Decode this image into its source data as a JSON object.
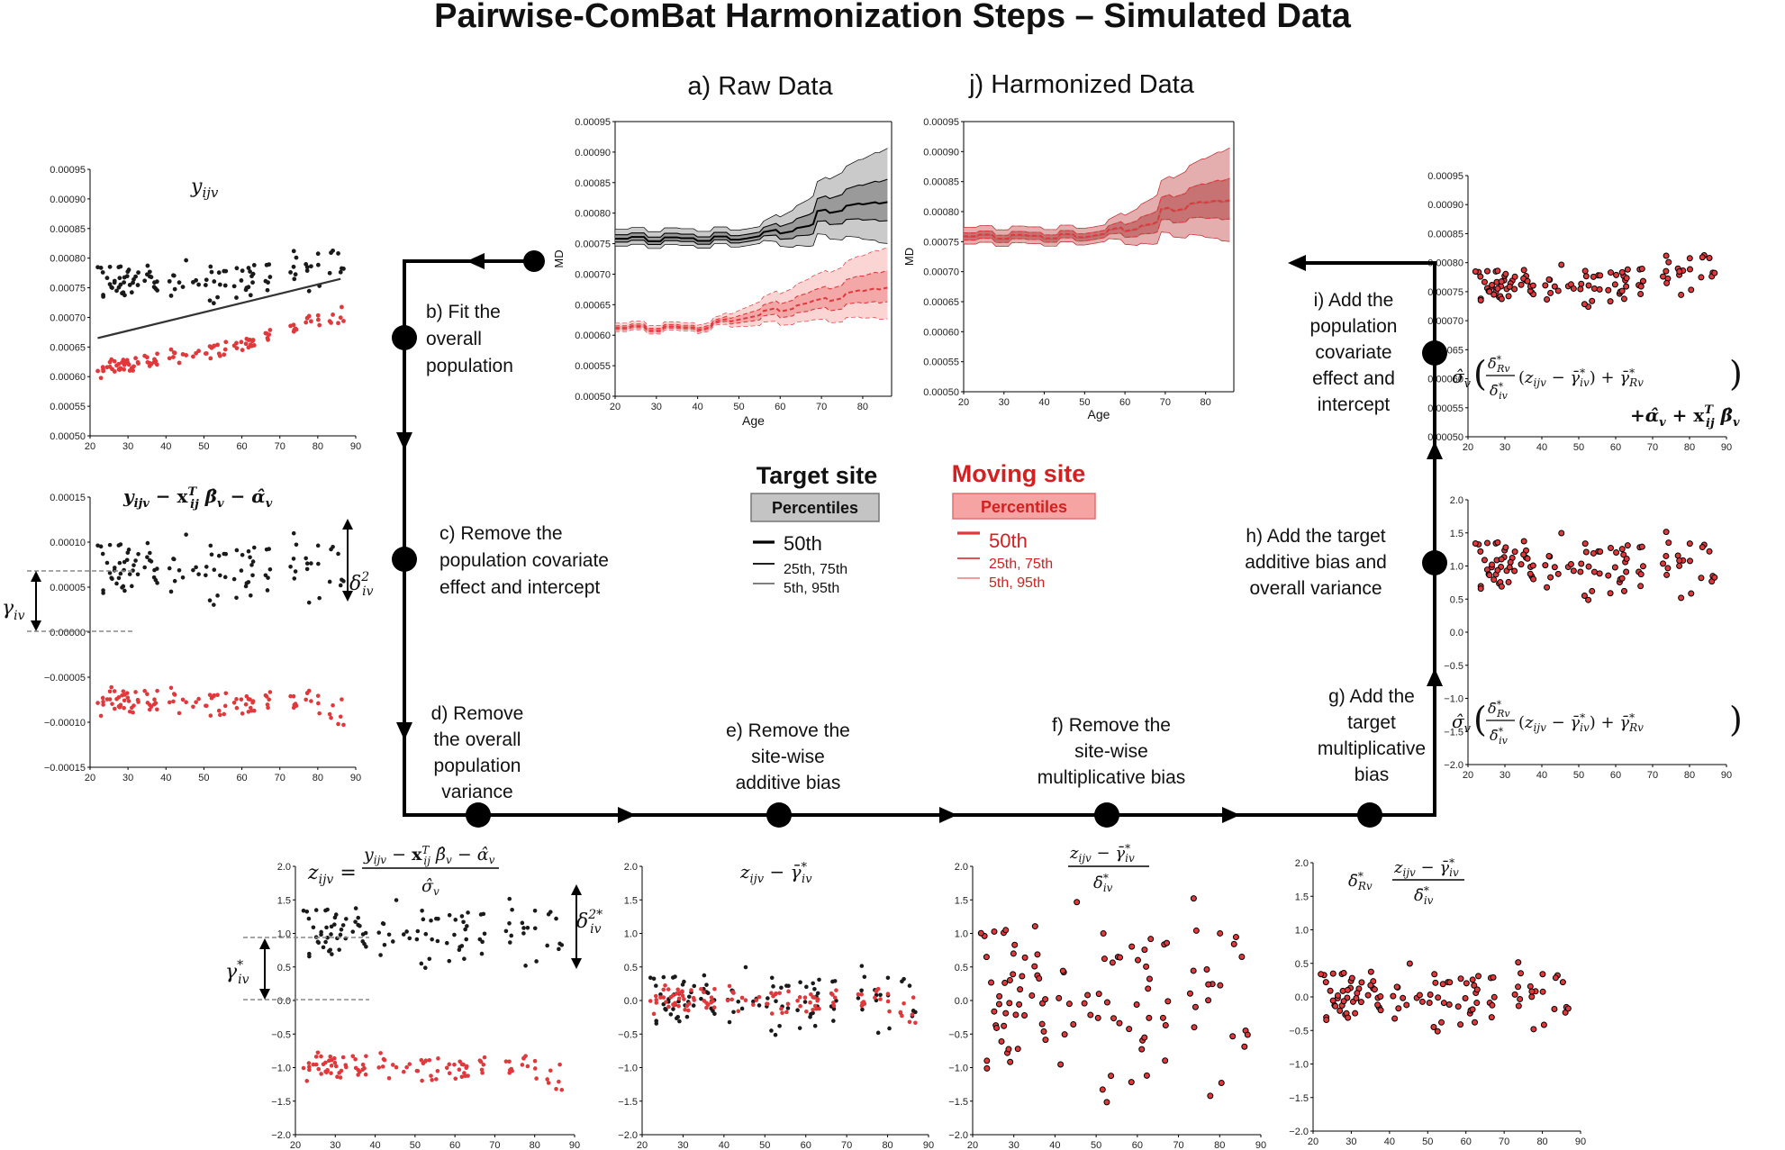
{
  "title": "Pairwise-ComBat Harmonization Steps  – Simulated Data",
  "colors": {
    "target": "#1a1a1a",
    "moving": "#e0383b",
    "moving_text": "#d42020",
    "target_band": "#bdbdbd",
    "moving_band": "#f3a7a7",
    "harmonized": "#b22222",
    "flow": "#000000"
  },
  "top_plots": {
    "raw": {
      "title": "a) Raw Data",
      "xlabel": "Age",
      "ylabel": "MD",
      "yticks": [
        "0.00050",
        "0.00055",
        "0.00060",
        "0.00065",
        "0.00070",
        "0.00075",
        "0.00080",
        "0.00085",
        "0.00090",
        "0.00095"
      ],
      "xticks": [
        "20",
        "30",
        "40",
        "50",
        "60",
        "70",
        "80"
      ]
    },
    "harmonized": {
      "title": "j) Harmonized Data",
      "xlabel": "Age",
      "ylabel": "MD",
      "yticks": [
        "0.00050",
        "0.00055",
        "0.00060",
        "0.00065",
        "0.00070",
        "0.00075",
        "0.00080",
        "0.00085",
        "0.00090",
        "0.00095"
      ],
      "xticks": [
        "20",
        "30",
        "40",
        "50",
        "60",
        "70",
        "80"
      ]
    }
  },
  "legend": {
    "target_title": "Target site",
    "moving_title": "Moving site",
    "percentiles_label": "Percentiles",
    "p50": "50th",
    "p25_75": "25th, 75th",
    "p5_95": "5th, 95th"
  },
  "steps": {
    "b": [
      "b) Fit the",
      "overall",
      "population"
    ],
    "c": [
      "c) Remove the",
      "population covariate",
      "effect and intercept"
    ],
    "d": [
      "d) Remove",
      "the overall",
      "population",
      "variance"
    ],
    "e": [
      "e) Remove the",
      "site-wise",
      "additive bias"
    ],
    "f": [
      "f) Remove the",
      "site-wise",
      "multiplicative bias"
    ],
    "g": [
      "g) Add the",
      "target",
      "multiplicative",
      "bias"
    ],
    "h": [
      "h) Add the target",
      "additive bias and",
      "overall variance"
    ],
    "i": [
      "i) Add the",
      "population",
      "covariate",
      "effect and",
      "intercept"
    ]
  },
  "panel_labels": {
    "y_ijv": "y",
    "y_sub": "ijv",
    "delta_sq": "δ",
    "delta_sub": "iv",
    "gamma": "γ",
    "gamma_sub": "iv"
  },
  "axes": {
    "ticks_x": [
      "20",
      "30",
      "40",
      "50",
      "60",
      "70",
      "80",
      "90"
    ],
    "ticks_md": [
      "0.00050",
      "0.00055",
      "0.00060",
      "0.00065",
      "0.00070",
      "0.00075",
      "0.00080",
      "0.00085",
      "0.00090",
      "0.00095"
    ],
    "ticks_resid": [
      "−0.00015",
      "−0.00010",
      "−0.00005",
      "0.00000",
      "0.00005",
      "0.00010",
      "0.00015"
    ],
    "ticks_z": [
      "−2.0",
      "−1.5",
      "−1.0",
      "−0.5",
      "0.0",
      "0.5",
      "1.0",
      "1.5",
      "2.0"
    ]
  }
}
